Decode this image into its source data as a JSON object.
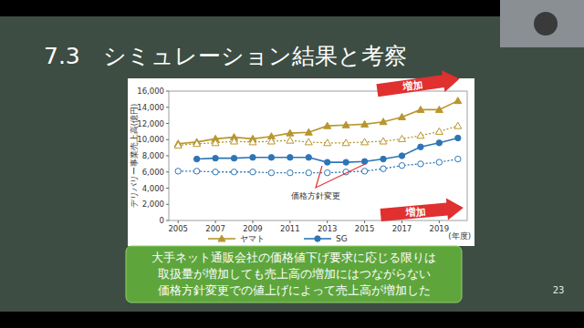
{
  "slide": {
    "title": "7.3　シミュレーション結果と考察",
    "page_number": "23",
    "box_text": [
      "大手ネット通販会社の価格値下げ要求に応じる限りは",
      "取扱量が増加しても売上高の増加にはつながらない",
      "価格方針変更での値上げによって売上高が増加した"
    ]
  },
  "chart_data": {
    "type": "line",
    "y_label": "デリバリー事業売上高(億円)",
    "x_label": "(年度)",
    "annotations": [
      "増加",
      "増加",
      "価格方針変更"
    ],
    "x": [
      2005,
      2006,
      2007,
      2008,
      2009,
      2010,
      2011,
      2012,
      2013,
      2014,
      2015,
      2016,
      2017,
      2018,
      2019,
      2020
    ],
    "xlim": [
      2004.5,
      2020.5
    ],
    "xticks": [
      2005,
      2007,
      2009,
      2011,
      2013,
      2015,
      2017,
      2019
    ],
    "ylim": [
      0,
      16000
    ],
    "yticks": [
      0,
      {
        "value": 2000,
        "label": "2,000"
      },
      {
        "value": 4000,
        "label": "4,000"
      },
      {
        "value": 6000,
        "label": "6,000"
      },
      {
        "value": 8000,
        "label": "8,000"
      },
      {
        "value": 10000,
        "label": "10,000"
      },
      {
        "value": 12000,
        "label": "12,000"
      },
      {
        "value": 14000,
        "label": "14,000"
      },
      {
        "value": 16000,
        "label": "16,000"
      }
    ],
    "grid": false,
    "legend": "bottom",
    "series": [
      {
        "name": "ヤマト",
        "color": "#b8962e",
        "marker": "triangle",
        "line_style": "solid",
        "values": [
          9500,
          9700,
          10100,
          10300,
          10100,
          10400,
          10800,
          10900,
          11700,
          11800,
          11900,
          12200,
          12800,
          13700,
          13700,
          14800
        ]
      },
      {
        "color": "#b8962e",
        "marker": "triangle-open",
        "line_style": "dotted",
        "values": [
          9300,
          9500,
          9600,
          9800,
          9700,
          9800,
          9900,
          9700,
          9600,
          9600,
          9700,
          9800,
          10100,
          10500,
          11000,
          11700
        ]
      },
      {
        "name": "SG",
        "color": "#2e75b6",
        "marker": "circle",
        "line_style": "solid",
        "values": [
          null,
          7600,
          7700,
          7700,
          7800,
          7800,
          7800,
          7800,
          7200,
          7200,
          7300,
          7600,
          8000,
          9100,
          9600,
          10200
        ]
      },
      {
        "color": "#2e75b6",
        "marker": "circle-open",
        "line_style": "dotted",
        "values": [
          6100,
          6100,
          6000,
          6000,
          6000,
          5900,
          5900,
          5900,
          5900,
          6000,
          6100,
          6400,
          6800,
          7000,
          7200,
          7600
        ]
      }
    ]
  }
}
